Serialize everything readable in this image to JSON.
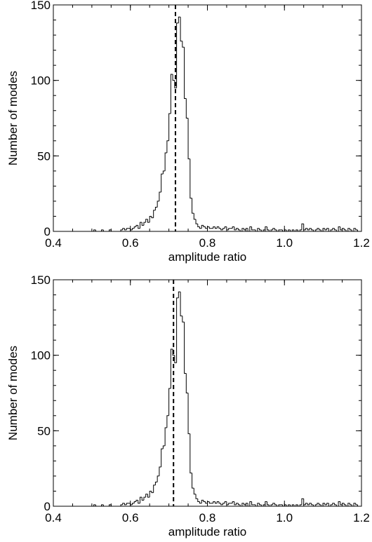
{
  "chart_data": [
    {
      "type": "histogram",
      "title": "",
      "xlabel": "amplitude ratio",
      "ylabel": "Number of modes",
      "xlim": [
        0.4,
        1.2
      ],
      "ylim": [
        0,
        150
      ],
      "xticks": [
        "0.4",
        "0.6",
        "0.8",
        "1.0",
        "1.2"
      ],
      "yticks": [
        "0",
        "50",
        "100",
        "150"
      ],
      "bin_width": 0.005,
      "bins": [
        [
          0.5,
          0
        ],
        [
          0.505,
          1
        ],
        [
          0.51,
          0
        ],
        [
          0.52,
          0
        ],
        [
          0.525,
          1
        ],
        [
          0.53,
          0
        ],
        [
          0.545,
          1
        ],
        [
          0.55,
          0
        ],
        [
          0.575,
          1
        ],
        [
          0.58,
          2
        ],
        [
          0.585,
          1
        ],
        [
          0.59,
          2
        ],
        [
          0.595,
          2
        ],
        [
          0.6,
          1
        ],
        [
          0.605,
          2
        ],
        [
          0.61,
          3
        ],
        [
          0.615,
          4
        ],
        [
          0.62,
          2
        ],
        [
          0.625,
          6
        ],
        [
          0.63,
          4
        ],
        [
          0.635,
          6
        ],
        [
          0.64,
          8
        ],
        [
          0.645,
          6
        ],
        [
          0.65,
          10
        ],
        [
          0.655,
          9
        ],
        [
          0.66,
          14
        ],
        [
          0.665,
          16
        ],
        [
          0.67,
          20
        ],
        [
          0.675,
          26
        ],
        [
          0.68,
          38
        ],
        [
          0.685,
          40
        ],
        [
          0.69,
          52
        ],
        [
          0.695,
          60
        ],
        [
          0.7,
          78
        ],
        [
          0.705,
          104
        ],
        [
          0.71,
          100
        ],
        [
          0.715,
          95
        ],
        [
          0.72,
          138
        ],
        [
          0.725,
          142
        ],
        [
          0.73,
          126
        ],
        [
          0.735,
          122
        ],
        [
          0.74,
          88
        ],
        [
          0.745,
          75
        ],
        [
          0.75,
          48
        ],
        [
          0.755,
          22
        ],
        [
          0.76,
          12
        ],
        [
          0.765,
          8
        ],
        [
          0.77,
          5
        ],
        [
          0.775,
          3
        ],
        [
          0.78,
          2
        ],
        [
          0.785,
          4
        ],
        [
          0.79,
          3
        ],
        [
          0.795,
          2
        ],
        [
          0.8,
          3
        ],
        [
          0.805,
          2
        ],
        [
          0.81,
          2
        ],
        [
          0.815,
          3
        ],
        [
          0.82,
          2
        ],
        [
          0.825,
          3
        ],
        [
          0.83,
          2
        ],
        [
          0.835,
          1
        ],
        [
          0.84,
          2
        ],
        [
          0.845,
          3
        ],
        [
          0.85,
          1
        ],
        [
          0.855,
          2
        ],
        [
          0.86,
          2
        ],
        [
          0.865,
          3
        ],
        [
          0.87,
          1
        ],
        [
          0.875,
          2
        ],
        [
          0.88,
          1
        ],
        [
          0.885,
          0
        ],
        [
          0.89,
          2
        ],
        [
          0.895,
          1
        ],
        [
          0.9,
          2
        ],
        [
          0.905,
          0
        ],
        [
          0.91,
          3
        ],
        [
          0.915,
          1
        ],
        [
          0.92,
          1
        ],
        [
          0.925,
          0
        ],
        [
          0.93,
          2
        ],
        [
          0.935,
          1
        ],
        [
          0.94,
          0
        ],
        [
          0.945,
          1
        ],
        [
          0.95,
          3
        ],
        [
          0.955,
          1
        ],
        [
          0.96,
          0
        ],
        [
          0.965,
          1
        ],
        [
          0.97,
          2
        ],
        [
          0.975,
          1
        ],
        [
          0.98,
          0
        ],
        [
          0.985,
          1
        ],
        [
          0.99,
          1
        ],
        [
          0.995,
          0
        ],
        [
          1.0,
          1
        ],
        [
          1.005,
          0
        ],
        [
          1.01,
          1
        ],
        [
          1.015,
          0
        ],
        [
          1.02,
          1
        ],
        [
          1.025,
          0
        ],
        [
          1.03,
          1
        ],
        [
          1.035,
          0
        ],
        [
          1.04,
          1
        ],
        [
          1.045,
          5
        ],
        [
          1.05,
          1
        ],
        [
          1.055,
          2
        ],
        [
          1.06,
          1
        ],
        [
          1.065,
          2
        ],
        [
          1.07,
          1
        ],
        [
          1.075,
          0
        ],
        [
          1.08,
          1
        ],
        [
          1.085,
          2
        ],
        [
          1.09,
          1
        ],
        [
          1.095,
          0
        ],
        [
          1.1,
          2
        ],
        [
          1.105,
          1
        ],
        [
          1.11,
          2
        ],
        [
          1.115,
          0
        ],
        [
          1.12,
          1
        ],
        [
          1.125,
          2
        ],
        [
          1.13,
          1
        ],
        [
          1.135,
          0
        ],
        [
          1.14,
          3
        ],
        [
          1.145,
          1
        ],
        [
          1.15,
          2
        ],
        [
          1.155,
          1
        ],
        [
          1.16,
          0
        ],
        [
          1.165,
          2
        ],
        [
          1.17,
          1
        ],
        [
          1.175,
          0
        ],
        [
          1.18,
          2
        ],
        [
          1.185,
          1
        ],
        [
          1.19,
          0
        ]
      ],
      "reference_line": {
        "x": 0.717,
        "style": "dashed"
      }
    },
    {
      "type": "histogram",
      "title": "",
      "xlabel": "amplitude ratio",
      "ylabel": "Number of modes",
      "xlim": [
        0.4,
        1.2
      ],
      "ylim": [
        0,
        150
      ],
      "xticks": [
        "0.4",
        "0.6",
        "0.8",
        "1.0",
        "1.2"
      ],
      "yticks": [
        "0",
        "50",
        "100",
        "150"
      ],
      "bin_width": 0.005,
      "bins": [
        [
          0.5,
          0
        ],
        [
          0.505,
          1
        ],
        [
          0.51,
          0
        ],
        [
          0.52,
          0
        ],
        [
          0.525,
          1
        ],
        [
          0.53,
          0
        ],
        [
          0.545,
          1
        ],
        [
          0.55,
          0
        ],
        [
          0.575,
          1
        ],
        [
          0.58,
          2
        ],
        [
          0.585,
          1
        ],
        [
          0.59,
          2
        ],
        [
          0.595,
          2
        ],
        [
          0.6,
          1
        ],
        [
          0.605,
          2
        ],
        [
          0.61,
          3
        ],
        [
          0.615,
          4
        ],
        [
          0.62,
          2
        ],
        [
          0.625,
          6
        ],
        [
          0.63,
          4
        ],
        [
          0.635,
          6
        ],
        [
          0.64,
          8
        ],
        [
          0.645,
          6
        ],
        [
          0.65,
          10
        ],
        [
          0.655,
          9
        ],
        [
          0.66,
          14
        ],
        [
          0.665,
          16
        ],
        [
          0.67,
          20
        ],
        [
          0.675,
          26
        ],
        [
          0.68,
          38
        ],
        [
          0.685,
          40
        ],
        [
          0.69,
          52
        ],
        [
          0.695,
          60
        ],
        [
          0.7,
          78
        ],
        [
          0.705,
          104
        ],
        [
          0.71,
          100
        ],
        [
          0.715,
          95
        ],
        [
          0.72,
          138
        ],
        [
          0.725,
          142
        ],
        [
          0.73,
          126
        ],
        [
          0.735,
          122
        ],
        [
          0.74,
          88
        ],
        [
          0.745,
          75
        ],
        [
          0.75,
          48
        ],
        [
          0.755,
          22
        ],
        [
          0.76,
          12
        ],
        [
          0.765,
          8
        ],
        [
          0.77,
          5
        ],
        [
          0.775,
          3
        ],
        [
          0.78,
          2
        ],
        [
          0.785,
          4
        ],
        [
          0.79,
          3
        ],
        [
          0.795,
          2
        ],
        [
          0.8,
          3
        ],
        [
          0.805,
          2
        ],
        [
          0.81,
          2
        ],
        [
          0.815,
          3
        ],
        [
          0.82,
          2
        ],
        [
          0.825,
          3
        ],
        [
          0.83,
          2
        ],
        [
          0.835,
          1
        ],
        [
          0.84,
          2
        ],
        [
          0.845,
          3
        ],
        [
          0.85,
          1
        ],
        [
          0.855,
          2
        ],
        [
          0.86,
          2
        ],
        [
          0.865,
          3
        ],
        [
          0.87,
          1
        ],
        [
          0.875,
          2
        ],
        [
          0.88,
          1
        ],
        [
          0.885,
          0
        ],
        [
          0.89,
          2
        ],
        [
          0.895,
          1
        ],
        [
          0.9,
          2
        ],
        [
          0.905,
          0
        ],
        [
          0.91,
          3
        ],
        [
          0.915,
          1
        ],
        [
          0.92,
          1
        ],
        [
          0.925,
          0
        ],
        [
          0.93,
          2
        ],
        [
          0.935,
          1
        ],
        [
          0.94,
          0
        ],
        [
          0.945,
          1
        ],
        [
          0.95,
          3
        ],
        [
          0.955,
          1
        ],
        [
          0.96,
          0
        ],
        [
          0.965,
          1
        ],
        [
          0.97,
          2
        ],
        [
          0.975,
          1
        ],
        [
          0.98,
          0
        ],
        [
          0.985,
          1
        ],
        [
          0.99,
          1
        ],
        [
          0.995,
          0
        ],
        [
          1.0,
          1
        ],
        [
          1.005,
          0
        ],
        [
          1.01,
          1
        ],
        [
          1.015,
          0
        ],
        [
          1.02,
          1
        ],
        [
          1.025,
          0
        ],
        [
          1.03,
          1
        ],
        [
          1.035,
          0
        ],
        [
          1.04,
          1
        ],
        [
          1.045,
          5
        ],
        [
          1.05,
          1
        ],
        [
          1.055,
          2
        ],
        [
          1.06,
          1
        ],
        [
          1.065,
          2
        ],
        [
          1.07,
          1
        ],
        [
          1.075,
          0
        ],
        [
          1.08,
          1
        ],
        [
          1.085,
          2
        ],
        [
          1.09,
          1
        ],
        [
          1.095,
          0
        ],
        [
          1.1,
          2
        ],
        [
          1.105,
          1
        ],
        [
          1.11,
          2
        ],
        [
          1.115,
          0
        ],
        [
          1.12,
          1
        ],
        [
          1.125,
          2
        ],
        [
          1.13,
          1
        ],
        [
          1.135,
          0
        ],
        [
          1.14,
          3
        ],
        [
          1.145,
          1
        ],
        [
          1.15,
          2
        ],
        [
          1.155,
          1
        ],
        [
          1.16,
          0
        ],
        [
          1.165,
          2
        ],
        [
          1.17,
          1
        ],
        [
          1.175,
          0
        ],
        [
          1.18,
          2
        ],
        [
          1.185,
          1
        ],
        [
          1.19,
          0
        ]
      ],
      "reference_line": {
        "x": 0.712,
        "style": "dashed"
      }
    }
  ]
}
